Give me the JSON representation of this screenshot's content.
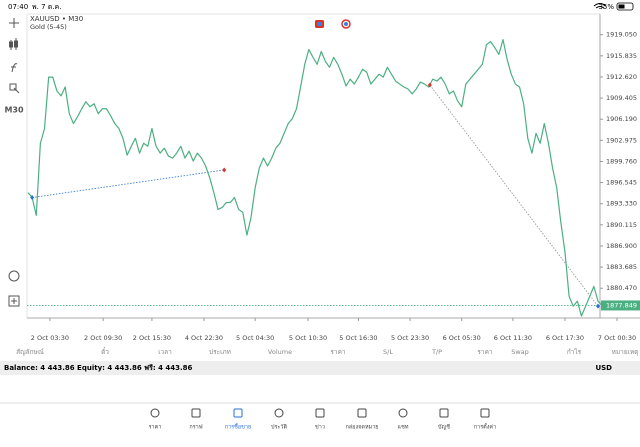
{
  "status_bar": {
    "time": "07:40",
    "date": "พ. 7 ต.ค.",
    "battery": "35%"
  },
  "toolbar": {
    "timeframe": "M30"
  },
  "chart_data": {
    "type": "line",
    "symbol": "XAUUSD • M30",
    "indicator": "Gold (5-45)",
    "color": "#4caf82",
    "values": [
      1895.02,
      1894.27,
      1891.56,
      1902.53,
      1904.78,
      1912.59,
      1912.59,
      1910.49,
      1909.74,
      1911.09,
      1907.03,
      1905.53,
      1906.58,
      1907.78,
      1908.84,
      1908.09,
      1908.54,
      1907.03,
      1907.78,
      1907.78,
      1906.73,
      1905.53,
      1904.78,
      1903.28,
      1900.73,
      1902.08,
      1903.28,
      1901.03,
      1902.53,
      1902.08,
      1904.78,
      1902.08,
      1901.03,
      1901.78,
      1900.58,
      1900.27,
      1901.03,
      1902.08,
      1900.27,
      1901.33,
      1899.82,
      1901.03,
      1900.27,
      1899.07,
      1897.27,
      1895.02,
      1892.46,
      1892.76,
      1893.52,
      1893.52,
      1894.27,
      1892.46,
      1892.01,
      1888.56,
      1891.26,
      1895.77,
      1898.77,
      1900.27,
      1899.07,
      1900.27,
      1901.78,
      1902.53,
      1904.03,
      1905.53,
      1906.28,
      1907.78,
      1911.09,
      1914.54,
      1916.8,
      1915.6,
      1914.54,
      1916.5,
      1914.99,
      1914.09,
      1915.6,
      1914.54,
      1913.04,
      1911.24,
      1912.29,
      1911.54,
      1912.59,
      1913.79,
      1913.34,
      1911.54,
      1912.29,
      1913.04,
      1912.59,
      1914.09,
      1913.04,
      1911.99,
      1911.54,
      1911.09,
      1910.79,
      1910.04,
      1910.79,
      1911.84,
      1911.54,
      1911.09,
      1912.29,
      1911.99,
      1912.59,
      1911.54,
      1910.04,
      1910.49,
      1908.99,
      1908.09,
      1911.54,
      1912.29,
      1913.04,
      1913.79,
      1914.54,
      1917.55,
      1918.0,
      1917.1,
      1916.05,
      1918.3,
      1915.29,
      1913.04,
      1911.54,
      1911.09,
      1908.54,
      1903.28,
      1901.03,
      1904.03,
      1902.53,
      1905.53,
      1902.53,
      1898.77,
      1895.77,
      1890.51,
      1886.01,
      1879.25,
      1877.74,
      1878.5,
      1876.24,
      1877.74,
      1879.25,
      1880.75,
      1878.5,
      1877.85
    ],
    "xlim": [
      0,
      138
    ],
    "xticks": [
      {
        "value": 5.3,
        "label": "2 Oct 03:30"
      },
      {
        "value": 18.2,
        "label": "2 Oct 09:30"
      },
      {
        "value": 30,
        "label": "2 Oct 15:30"
      },
      {
        "value": 42.6,
        "label": "4 Oct 22:30"
      },
      {
        "value": 55,
        "label": "5 Oct 04:30"
      },
      {
        "value": 67.8,
        "label": "5 Oct 10:30"
      },
      {
        "value": 80,
        "label": "5 Oct 16:30"
      },
      {
        "value": 92.5,
        "label": "5 Oct 23:30"
      },
      {
        "value": 105,
        "label": "6 Oct 05:30"
      },
      {
        "value": 117.4,
        "label": "6 Oct 11:30"
      },
      {
        "value": 130,
        "label": "6 Oct 17:30"
      },
      {
        "value": 142.6,
        "label": "7 Oct 00:30"
      }
    ],
    "ylim": [
      1875.94,
      1922.2
    ],
    "yticks": [
      {
        "value": 1919.05,
        "label": "1919.050"
      },
      1915.835,
      {
        "value": 1912.62,
        "label": "1912.620"
      },
      1909.405,
      {
        "value": 1906.19,
        "label": "1906.190"
      },
      1902.975,
      {
        "value": 1899.76,
        "label": "1899.760"
      },
      1896.545,
      {
        "value": 1893.33,
        "label": "1893.330"
      },
      1890.115,
      {
        "value": 1886.9,
        "label": "1886.900"
      },
      1883.685,
      {
        "value": 1880.47,
        "label": "1880.470"
      }
    ],
    "current_price": 1877.849,
    "current_color": "#4caf82",
    "trade_lines": [
      {
        "x": [
          1,
          47.5
        ],
        "y": [
          1894.27,
          1898.47
        ],
        "color": "#3b82d6"
      },
      {
        "x": [
          97.3,
          138
        ],
        "y": [
          1911.39,
          1877.74
        ],
        "color": "#9a9a9a"
      }
    ],
    "trade_markers": [
      {
        "x": 1,
        "y": 1894.27,
        "color": "#2a6fd6"
      },
      {
        "x": 47.5,
        "y": 1898.47,
        "color": "#d9332b"
      },
      {
        "x": 97.3,
        "y": 1911.39,
        "color": "#d9332b"
      },
      {
        "x": 138,
        "y": 1877.74,
        "color": "#2a6fd6"
      }
    ]
  },
  "table": {
    "columns": [
      "สัญลักษณ์",
      "ตั๋ว",
      "เวลา",
      "ประเภท",
      "Volume",
      "ราคา",
      "S/L",
      "T/P",
      "ราคา",
      "Swap",
      "กำไร",
      "หมายเหตุ"
    ]
  },
  "account": {
    "summary": "Balance: 4 443.86 Equity: 4 443.86 ฟรี: 4 443.86",
    "currency": "USD"
  },
  "nav": {
    "items": [
      "ราคา",
      "กราฟ",
      "การซื้อขาย",
      "ประวัติ",
      "ข่าว",
      "กล่องจดหมาย",
      "แชท",
      "บัญชี",
      "การตั้งค่า"
    ],
    "active": 2
  }
}
